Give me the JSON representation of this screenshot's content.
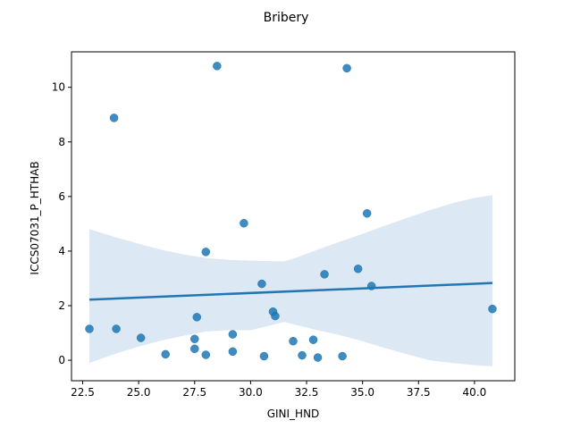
{
  "chart_data": {
    "type": "scatter",
    "title": "Bribery",
    "xlabel": "GINI_HND",
    "ylabel": "ICCS07031_P_HTHAB",
    "xlim": [
      22.0,
      41.8
    ],
    "ylim": [
      -0.75,
      11.3
    ],
    "xticks": [
      22.5,
      25.0,
      27.5,
      30.0,
      32.5,
      35.0,
      37.5,
      40.0
    ],
    "xtick_labels": [
      "22.5",
      "25.0",
      "27.5",
      "30.0",
      "32.5",
      "35.0",
      "37.5",
      "40.0"
    ],
    "yticks": [
      0,
      2,
      4,
      6,
      8,
      10
    ],
    "ytick_labels": [
      "0",
      "2",
      "4",
      "6",
      "8",
      "10"
    ],
    "grid": false,
    "colors": {
      "points": "#1f77b4",
      "regression_line": "#1f77b4",
      "confidence_band": "#d6e4f1"
    },
    "points": [
      {
        "x": 22.8,
        "y": 1.15
      },
      {
        "x": 23.9,
        "y": 8.88
      },
      {
        "x": 24.0,
        "y": 1.15
      },
      {
        "x": 25.1,
        "y": 0.82
      },
      {
        "x": 26.2,
        "y": 0.22
      },
      {
        "x": 27.5,
        "y": 0.78
      },
      {
        "x": 27.5,
        "y": 0.42
      },
      {
        "x": 27.6,
        "y": 1.58
      },
      {
        "x": 28.0,
        "y": 0.2
      },
      {
        "x": 28.0,
        "y": 3.97
      },
      {
        "x": 28.5,
        "y": 10.78
      },
      {
        "x": 29.2,
        "y": 0.95
      },
      {
        "x": 29.2,
        "y": 0.32
      },
      {
        "x": 29.7,
        "y": 5.02
      },
      {
        "x": 30.5,
        "y": 2.8
      },
      {
        "x": 30.6,
        "y": 0.15
      },
      {
        "x": 31.0,
        "y": 1.78
      },
      {
        "x": 31.1,
        "y": 1.62
      },
      {
        "x": 31.9,
        "y": 0.7
      },
      {
        "x": 32.3,
        "y": 0.18
      },
      {
        "x": 32.8,
        "y": 0.75
      },
      {
        "x": 33.0,
        "y": 0.1
      },
      {
        "x": 33.3,
        "y": 3.15
      },
      {
        "x": 34.1,
        "y": 0.15
      },
      {
        "x": 34.3,
        "y": 10.7
      },
      {
        "x": 34.8,
        "y": 3.35
      },
      {
        "x": 35.2,
        "y": 5.38
      },
      {
        "x": 35.4,
        "y": 2.72
      },
      {
        "x": 40.8,
        "y": 1.88
      }
    ],
    "regression": {
      "x": [
        22.8,
        40.8
      ],
      "y": [
        2.22,
        2.83
      ]
    },
    "confidence_band": {
      "x": [
        22.8,
        24.0,
        25.0,
        26.0,
        27.0,
        28.0,
        29.0,
        30.0,
        31.0,
        31.5,
        32.0,
        33.0,
        34.0,
        35.0,
        36.0,
        37.0,
        38.0,
        39.0,
        40.0,
        40.8
      ],
      "upper": [
        4.8,
        4.5,
        4.27,
        4.05,
        3.88,
        3.75,
        3.68,
        3.65,
        3.63,
        3.62,
        3.75,
        4.05,
        4.35,
        4.63,
        4.93,
        5.22,
        5.5,
        5.75,
        5.95,
        6.05
      ],
      "lower": [
        -0.1,
        0.25,
        0.5,
        0.72,
        0.9,
        1.05,
        1.1,
        1.1,
        1.3,
        1.4,
        1.3,
        1.1,
        0.92,
        0.7,
        0.45,
        0.22,
        0.0,
        -0.1,
        -0.18,
        -0.22
      ]
    }
  }
}
